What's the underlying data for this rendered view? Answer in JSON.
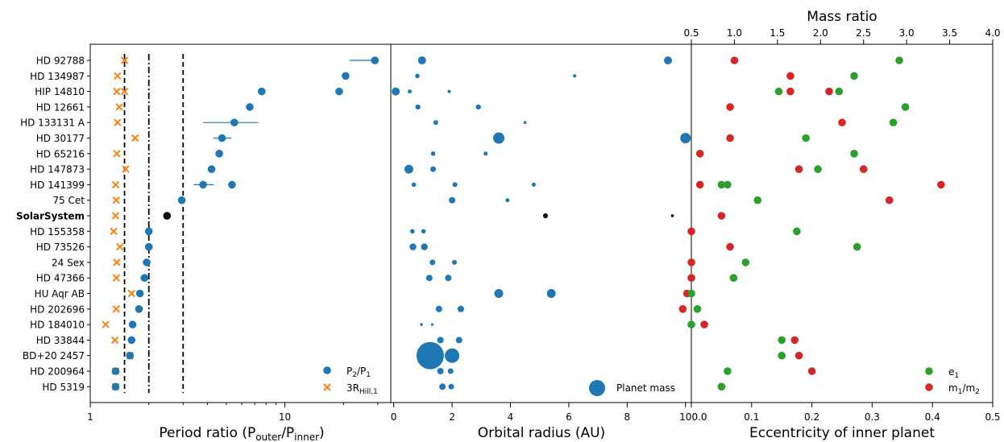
{
  "colors": {
    "blue": "#1f77b4",
    "orange": "#ff7f0e",
    "green": "#2ca02c",
    "red": "#d62728",
    "black": "#000000"
  },
  "systems": [
    "HD 92788",
    "HD 134987",
    "HIP 14810",
    "HD 12661",
    "HD 133131 A",
    "HD 30177",
    "HD 65216",
    "HD 147873",
    "HD 141399",
    "75 Cet",
    "SolarSystem",
    "HD 155358",
    "HD 73526",
    "24 Sex",
    "HD 47366",
    "HU Aqr AB",
    "HD 202696",
    "HD 184010",
    "HD 33844",
    "BD+20 2457",
    "HD 200964",
    "HD 5319"
  ],
  "chart_data": [
    {
      "type": "scatter",
      "xlabel": "Period ratio (P",
      "xlabel_sub1": "outer",
      "xlabel_mid": "/P",
      "xlabel_sub2": "inner",
      "xlabel_end": ")",
      "xscale": "log",
      "xlim": [
        1,
        35
      ],
      "xticks": [
        "1",
        "10"
      ],
      "vlines": [
        {
          "x": 1.5,
          "style": "dashed"
        },
        {
          "x": 2.0,
          "style": "dashdot"
        },
        {
          "x": 3.0,
          "style": "dashed"
        }
      ],
      "legend": [
        {
          "marker": "circle",
          "label": "P",
          "sub1": "2",
          "mid": "/P",
          "sub2": "1"
        },
        {
          "marker": "x",
          "label": "3R",
          "sub1": "Hill,1"
        }
      ],
      "legend_location": "lower right",
      "period_ratio": [
        {
          "system": "HD 92788",
          "value": 29,
          "err": [
            21.5,
            29
          ]
        },
        {
          "system": "HD 134987",
          "value": 20.5
        },
        {
          "system": "HIP 14810",
          "values": [
            7.6,
            19
          ]
        },
        {
          "system": "HD 12661",
          "value": 6.6
        },
        {
          "system": "HD 133131 A",
          "value": 5.5,
          "err": [
            3.8,
            7.3
          ]
        },
        {
          "system": "HD 30177",
          "value": 4.75,
          "err": [
            4.3,
            5.3
          ]
        },
        {
          "system": "HD 65216",
          "value": 4.6
        },
        {
          "system": "HD 147873",
          "value": 4.2
        },
        {
          "system": "HD 141399",
          "values": [
            3.8,
            5.35
          ],
          "err": [
            3.4,
            4.3
          ]
        },
        {
          "system": "75 Cet",
          "value": 2.95
        },
        {
          "system": "SolarSystem",
          "value": 2.48,
          "color": "black"
        },
        {
          "system": "HD 155358",
          "value": 2.0
        },
        {
          "system": "HD 73526",
          "value": 2.0
        },
        {
          "system": "24 Sex",
          "value": 1.95
        },
        {
          "system": "HD 47366",
          "value": 1.9
        },
        {
          "system": "HU Aqr AB",
          "value": 1.8
        },
        {
          "system": "HD 202696",
          "value": 1.78
        },
        {
          "system": "HD 184010",
          "value": 1.65
        },
        {
          "system": "HD 33844",
          "value": 1.63
        },
        {
          "system": "BD+20 2457",
          "value": 1.6
        },
        {
          "system": "HD 200964",
          "value": 1.35
        },
        {
          "system": "HD 5319",
          "value": 1.35
        }
      ],
      "hill_ratio": [
        1.5,
        1.38,
        1.37,
        1.41,
        1.38,
        1.7,
        1.37,
        1.52,
        1.35,
        1.36,
        1.35,
        1.32,
        1.42,
        1.37,
        1.36,
        1.63,
        1.36,
        1.2,
        1.34,
        1.6,
        1.35,
        1.35
      ],
      "hill_ratio_extra": [
        {
          "system": "HIP 14810",
          "value": 1.5
        }
      ]
    },
    {
      "type": "scatter",
      "xlabel": "Orbital radius (AU)",
      "xlim": [
        -0.1,
        10.2
      ],
      "xticks": [
        0,
        2,
        4,
        6,
        8,
        10
      ],
      "legend": [
        {
          "marker": "circle",
          "label": "Planet mass"
        }
      ],
      "legend_location": "lower right",
      "planets": [
        {
          "system": "HD 92788",
          "a": [
            0.97,
            9.4
          ],
          "size": [
            5,
            5
          ]
        },
        {
          "system": "HD 134987",
          "a": [
            0.81,
            6.2
          ],
          "size": [
            2.8,
            2
          ]
        },
        {
          "system": "HIP 14810",
          "a": [
            0.07,
            0.55,
            1.9
          ],
          "size": [
            5,
            2.5,
            2
          ]
        },
        {
          "system": "HD 12661",
          "a": [
            0.83,
            2.9
          ],
          "size": [
            3.2,
            3.2
          ]
        },
        {
          "system": "HD 133131 A",
          "a": [
            1.44,
            4.5
          ],
          "size": [
            3,
            1.8
          ]
        },
        {
          "system": "HD 30177",
          "a": [
            3.6,
            10.0
          ],
          "size": [
            7,
            6.5
          ]
        },
        {
          "system": "HD 65216",
          "a": [
            1.35,
            3.15
          ],
          "size": [
            2.8,
            2.5
          ]
        },
        {
          "system": "HD 147873",
          "a": [
            0.52,
            1.35
          ],
          "size": [
            5.5,
            3.5
          ]
        },
        {
          "system": "HD 141399",
          "a": [
            0.69,
            2.1,
            4.8
          ],
          "size": [
            2.8,
            3,
            2.5
          ]
        },
        {
          "system": "75 Cet",
          "a": [
            2.0,
            3.9
          ],
          "size": [
            4,
            2.5
          ]
        },
        {
          "system": "SolarSystem",
          "a": [
            5.2,
            9.55
          ],
          "size": [
            3,
            1.8
          ],
          "color": "black"
        },
        {
          "system": "HD 155358",
          "a": [
            0.64,
            1.02
          ],
          "size": [
            2.8,
            2.8
          ]
        },
        {
          "system": "HD 73526",
          "a": [
            0.66,
            1.05
          ],
          "size": [
            4.2,
            4.2
          ]
        },
        {
          "system": "24 Sex",
          "a": [
            1.33,
            2.08
          ],
          "size": [
            3.5,
            3
          ]
        },
        {
          "system": "HD 47366",
          "a": [
            1.22,
            1.87
          ],
          "size": [
            4,
            4
          ]
        },
        {
          "system": "HU Aqr AB",
          "a": [
            3.6,
            5.4
          ],
          "size": [
            5.5,
            5.5
          ]
        },
        {
          "system": "HD 202696",
          "a": [
            1.55,
            2.3
          ],
          "size": [
            4,
            4
          ]
        },
        {
          "system": "HD 184010",
          "a": [
            0.95,
            1.32
          ],
          "size": [
            1.8,
            1.6
          ]
        },
        {
          "system": "HD 33844",
          "a": [
            1.6,
            2.24
          ],
          "size": [
            4,
            4
          ]
        },
        {
          "system": "BD+20 2457",
          "a": [
            1.25,
            2.0
          ],
          "size": [
            17,
            9
          ]
        },
        {
          "system": "HD 200964",
          "a": [
            1.6,
            1.95
          ],
          "size": [
            4,
            3.5
          ]
        },
        {
          "system": "HD 5319",
          "a": [
            1.67,
            1.97
          ],
          "size": [
            4,
            3.5
          ]
        }
      ]
    },
    {
      "type": "scatter",
      "xlabel": "Eccentricity of inner planet",
      "top_xlabel": "Mass ratio",
      "xlim": [
        0.0,
        0.5
      ],
      "top_xlim": [
        0.5,
        4.0
      ],
      "xticks": [
        "0.0",
        "0.1",
        "0.2",
        "0.3",
        "0.4",
        "0.5"
      ],
      "top_xticks": [
        "0.5",
        "1.0",
        "1.5",
        "2.0",
        "2.5",
        "3.0",
        "3.5",
        "4.0"
      ],
      "legend": [
        {
          "marker": "circle",
          "color": "green",
          "label": "e",
          "sub1": "1"
        },
        {
          "marker": "circle",
          "color": "red",
          "label": "m",
          "sub1": "1",
          "mid": "/m",
          "sub2": "2"
        }
      ],
      "legend_location": "lower right",
      "eccentricity": [
        0.345,
        0.27,
        0.245,
        0.355,
        0.335,
        0.19,
        0.27,
        0.21,
        0.05,
        0.11,
        null,
        0.175,
        0.275,
        0.09,
        0.07,
        0.0,
        0.01,
        0.0,
        0.15,
        0.15,
        0.06,
        0.05
      ],
      "eccentricity_extra": [
        {
          "system": "HIP 14810",
          "value": 0.145
        },
        {
          "system": "HD 141399",
          "value": 0.06
        }
      ],
      "mass_ratio": [
        1.0,
        1.65,
        2.1,
        0.95,
        2.25,
        0.95,
        0.6,
        2.5,
        0.6,
        2.8,
        0.85,
        0.5,
        0.95,
        0.5,
        0.5,
        0.45,
        0.4,
        0.65,
        1.7,
        1.75,
        1.9,
        0.85
      ],
      "mass_ratio_extra": [
        {
          "system": "HIP 14810",
          "value": 1.65
        },
        {
          "system": "HD 141399",
          "value": 3.4
        },
        {
          "system": "HD 147873",
          "value": 1.75
        }
      ]
    }
  ]
}
